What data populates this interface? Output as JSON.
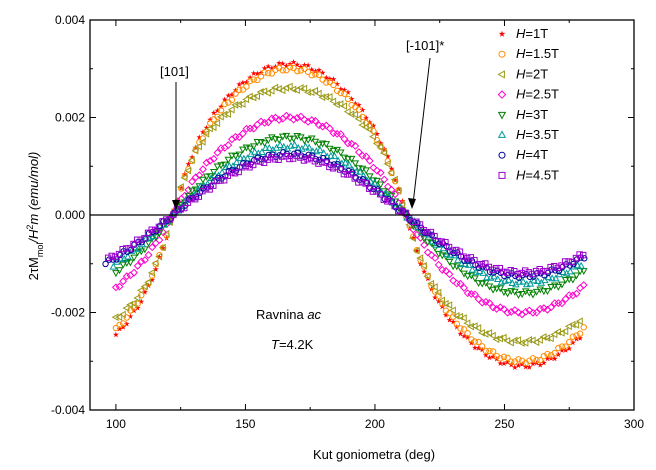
{
  "chart_data": {
    "type": "scatter",
    "xlabel": "Kut goniometra (deg)",
    "ylabel": {
      "prefix": "2τM",
      "sub1": "mol",
      "mid": "/H",
      "sup": "2",
      "end": "m (emu/mol)"
    },
    "xlim": [
      90,
      300
    ],
    "ylim": [
      -0.004,
      0.004
    ],
    "xticks": [
      "100",
      "150",
      "200",
      "250",
      "300"
    ],
    "xtick_values": [
      100,
      150,
      200,
      250,
      300
    ],
    "yticks": [
      "0.004",
      "0.002",
      "0.000",
      "-0.002",
      "-0.004"
    ],
    "ytick_values": [
      0.004,
      0.002,
      0,
      -0.002,
      -0.004
    ],
    "legend_position": "top-right",
    "annotations": [
      {
        "text": "[101]",
        "x": 123,
        "y": 0.0
      },
      {
        "text": "[-101]*",
        "x": 212,
        "y": 0.0
      }
    ],
    "plane_text": {
      "prefix": "Ravnina ",
      "italic": "ac"
    },
    "temp_text": {
      "italic": "T",
      "rest": "=4.2K"
    },
    "series": [
      {
        "name": "1T",
        "label_italic": "H",
        "marker": "star",
        "color": "#ff0000",
        "x_range": [
          100,
          280
        ],
        "amplitude": 0.0031,
        "x0": 212,
        "shape": 0.35
      },
      {
        "name": "1.5T",
        "label_italic": "H",
        "marker": "circle",
        "color": "#ff8c00",
        "x_range": [
          100,
          282
        ],
        "amplitude": 0.003,
        "x0": 212,
        "shape": 0.32
      },
      {
        "name": "2T",
        "label_italic": "H",
        "marker": "triangle-left",
        "color": "#9a9a1a",
        "x_range": [
          100,
          280
        ],
        "amplitude": 0.0026,
        "x0": 212,
        "shape": 0.45
      },
      {
        "name": "2.5T",
        "label_italic": "H",
        "marker": "diamond",
        "color": "#ff00cc",
        "x_range": [
          100,
          281
        ],
        "amplitude": 0.002,
        "x0": 212,
        "shape": 0.18
      },
      {
        "name": "3T",
        "label_italic": "H",
        "marker": "triangle-down",
        "color": "#008000",
        "x_range": [
          100,
          281
        ],
        "amplitude": 0.0016,
        "x0": 212,
        "shape": 0.1
      },
      {
        "name": "3.5T",
        "label_italic": "H",
        "marker": "triangle-up",
        "color": "#009999",
        "x_range": [
          99,
          281
        ],
        "amplitude": 0.0014,
        "x0": 212,
        "shape": 0.06
      },
      {
        "name": "4T",
        "label_italic": "H",
        "marker": "circle",
        "color": "#000099",
        "x_range": [
          96,
          281
        ],
        "amplitude": 0.00125,
        "x0": 212,
        "shape": 0.03
      },
      {
        "name": "4.5T",
        "label_italic": "H",
        "marker": "square",
        "color": "#9900cc",
        "x_range": [
          97,
          281
        ],
        "amplitude": 0.00118,
        "x0": 212,
        "shape": 0.0
      }
    ]
  }
}
